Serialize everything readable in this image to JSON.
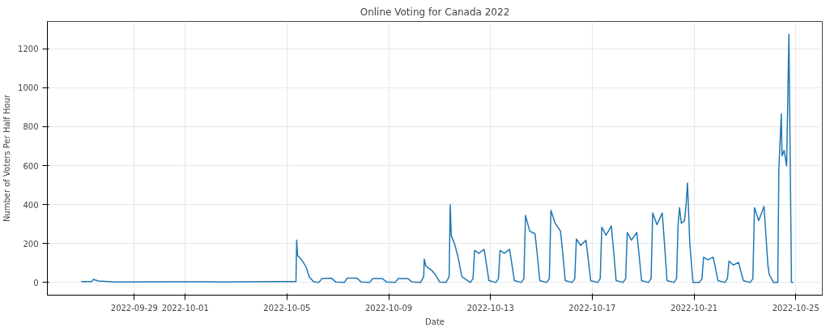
{
  "chart_data": {
    "type": "line",
    "title": "Online Voting for Canada 2022",
    "xlabel": "Date",
    "ylabel": "Number of Voters Per Half Hour",
    "xlim": [
      "2022-09-25T14:00",
      "2022-10-26T01:00"
    ],
    "xticks": [
      "2022-09-29",
      "2022-10-01",
      "2022-10-05",
      "2022-10-09",
      "2022-10-13",
      "2022-10-17",
      "2022-10-21",
      "2022-10-25"
    ],
    "ylim": [
      -65,
      1340
    ],
    "yticks": [
      0,
      200,
      400,
      600,
      800,
      1000,
      1200
    ],
    "grid": true,
    "x": [
      "2022-09-26T22:00",
      "2022-09-27T08:00",
      "2022-09-27T09:30",
      "2022-09-27T14:00",
      "2022-09-28T06:00",
      "2022-09-30T12:00",
      "2022-10-02T12:00",
      "2022-10-04T12:00",
      "2022-10-05T08:30",
      "2022-10-05T09:10",
      "2022-10-05T10:00",
      "2022-10-05T14:00",
      "2022-10-05T18:00",
      "2022-10-05T21:00",
      "2022-10-06T01:00",
      "2022-10-06T06:00",
      "2022-10-06T09:00",
      "2022-10-06T18:00",
      "2022-10-06T22:00",
      "2022-10-07T06:00",
      "2022-10-07T09:00",
      "2022-10-07T18:00",
      "2022-10-07T22:00",
      "2022-10-08T06:00",
      "2022-10-08T09:00",
      "2022-10-08T18:00",
      "2022-10-08T22:00",
      "2022-10-09T06:00",
      "2022-10-09T09:00",
      "2022-10-09T18:00",
      "2022-10-09T22:00",
      "2022-10-10T06:00",
      "2022-10-10T09:00",
      "2022-10-10T09:30",
      "2022-10-10T11:00",
      "2022-10-10T17:00",
      "2022-10-10T20:00",
      "2022-10-11T00:00",
      "2022-10-11T06:00",
      "2022-10-11T09:00",
      "2022-10-11T10:00",
      "2022-10-11T11:00",
      "2022-10-11T14:00",
      "2022-10-11T17:00",
      "2022-10-11T21:00",
      "2022-10-12T05:00",
      "2022-10-12T07:30",
      "2022-10-12T09:00",
      "2022-10-12T13:00",
      "2022-10-12T18:00",
      "2022-10-12T20:00",
      "2022-10-12T22:30",
      "2022-10-13T05:00",
      "2022-10-13T07:30",
      "2022-10-13T09:00",
      "2022-10-13T13:00",
      "2022-10-13T18:00",
      "2022-10-13T20:00",
      "2022-10-13T22:30",
      "2022-10-14T05:00",
      "2022-10-14T07:30",
      "2022-10-14T09:00",
      "2022-10-14T13:00",
      "2022-10-14T18:00",
      "2022-10-14T20:00",
      "2022-10-14T22:30",
      "2022-10-15T05:00",
      "2022-10-15T07:30",
      "2022-10-15T09:00",
      "2022-10-15T13:00",
      "2022-10-15T18:00",
      "2022-10-15T20:00",
      "2022-10-15T22:30",
      "2022-10-16T05:00",
      "2022-10-16T07:30",
      "2022-10-16T09:00",
      "2022-10-16T13:00",
      "2022-10-16T18:00",
      "2022-10-16T20:00",
      "2022-10-16T22:30",
      "2022-10-17T05:00",
      "2022-10-17T07:30",
      "2022-10-17T09:00",
      "2022-10-17T13:00",
      "2022-10-17T18:00",
      "2022-10-17T20:00",
      "2022-10-17T22:30",
      "2022-10-18T05:00",
      "2022-10-18T07:30",
      "2022-10-18T09:00",
      "2022-10-18T13:00",
      "2022-10-18T18:00",
      "2022-10-18T20:00",
      "2022-10-18T22:30",
      "2022-10-19T05:00",
      "2022-10-19T07:30",
      "2022-10-19T09:00",
      "2022-10-19T13:00",
      "2022-10-19T18:00",
      "2022-10-19T20:00",
      "2022-10-19T22:30",
      "2022-10-20T05:00",
      "2022-10-20T07:30",
      "2022-10-20T09:00",
      "2022-10-20T10:20",
      "2022-10-20T12:00",
      "2022-10-20T15:00",
      "2022-10-20T16:30",
      "2022-10-20T17:50",
      "2022-10-20T20:00",
      "2022-10-20T23:00",
      "2022-10-21T05:00",
      "2022-10-21T07:30",
      "2022-10-21T09:00",
      "2022-10-21T13:00",
      "2022-10-21T18:00",
      "2022-10-21T20:00",
      "2022-10-21T22:30",
      "2022-10-22T05:00",
      "2022-10-22T07:30",
      "2022-10-22T09:00",
      "2022-10-22T13:00",
      "2022-10-22T18:00",
      "2022-10-22T20:00",
      "2022-10-22T22:30",
      "2022-10-23T05:00",
      "2022-10-23T07:30",
      "2022-10-23T09:00",
      "2022-10-23T13:00",
      "2022-10-23T18:00",
      "2022-10-23T21:40",
      "2022-10-23T23:00",
      "2022-10-24T03:00",
      "2022-10-24T07:00",
      "2022-10-24T08:00",
      "2022-10-24T10:20",
      "2022-10-24T11:00",
      "2022-10-24T13:00",
      "2022-10-24T15:20",
      "2022-10-24T17:30",
      "2022-10-24T19:55",
      "2022-10-24T21:40"
    ],
    "series": [
      {
        "color": "#1f77b4",
        "values": [
          5,
          5,
          16,
          8,
          3,
          4,
          3,
          5,
          5,
          218,
          140,
          115,
          80,
          30,
          5,
          0,
          20,
          22,
          3,
          0,
          22,
          22,
          3,
          0,
          20,
          20,
          3,
          0,
          20,
          20,
          3,
          0,
          30,
          120,
          85,
          60,
          40,
          3,
          0,
          30,
          400,
          240,
          200,
          140,
          30,
          0,
          20,
          165,
          150,
          170,
          100,
          10,
          0,
          20,
          165,
          150,
          170,
          100,
          10,
          0,
          20,
          344,
          264,
          250,
          150,
          10,
          0,
          20,
          370,
          304,
          264,
          160,
          10,
          0,
          20,
          223,
          190,
          217,
          130,
          10,
          0,
          20,
          284,
          243,
          290,
          170,
          10,
          0,
          20,
          257,
          217,
          257,
          150,
          10,
          0,
          20,
          357,
          297,
          357,
          210,
          10,
          0,
          20,
          300,
          384,
          304,
          317,
          400,
          511,
          200,
          0,
          0,
          20,
          130,
          116,
          130,
          80,
          10,
          0,
          20,
          110,
          90,
          103,
          60,
          10,
          0,
          20,
          384,
          317,
          390,
          90,
          40,
          0,
          0,
          580,
          865,
          650,
          678,
          598,
          1273,
          0,
          0
        ]
      }
    ]
  }
}
